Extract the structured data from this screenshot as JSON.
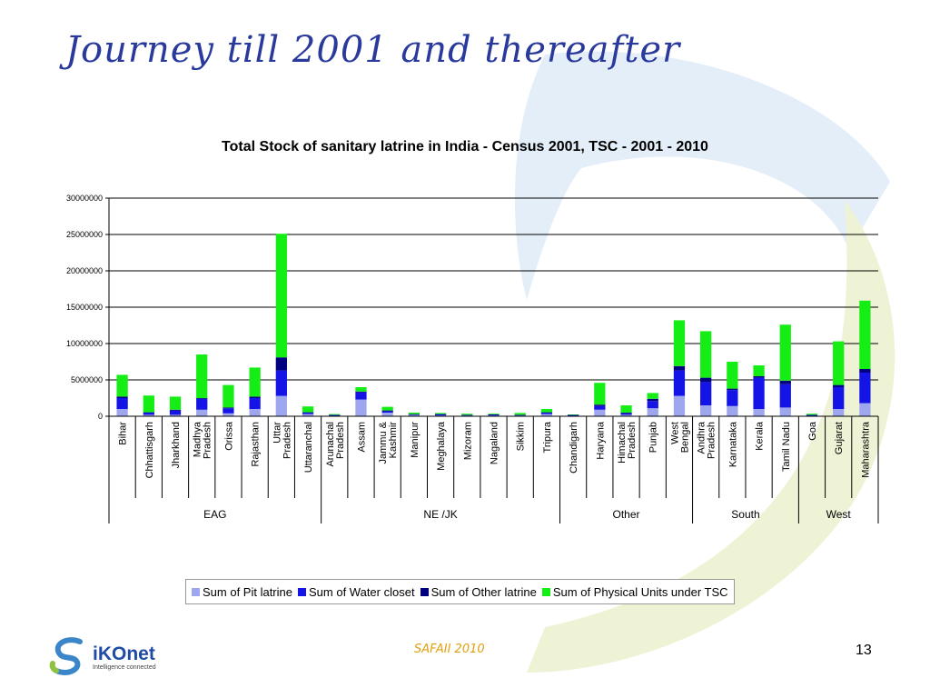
{
  "slide": {
    "title": "Journey till 2001 and thereafter",
    "footer_note": "SAFAII 2010",
    "slide_number": "13",
    "logo": {
      "brand": "iKOnet",
      "tagline": "Intelligence connected"
    }
  },
  "colors": {
    "pit": "#9ea6ee",
    "water": "#1414e6",
    "other": "#000080",
    "tsc": "#14ee14",
    "title": "#2a3a9c",
    "swoosh_blue": "#e3eef9",
    "swoosh_green": "#eef3d6"
  },
  "chart_data": {
    "type": "bar",
    "stacked": true,
    "title": "Total Stock of sanitary latrine in India - Census 2001, TSC - 2001 - 2010",
    "ylim": [
      0,
      30000000
    ],
    "yticks": [
      "0",
      "5000000",
      "10000000",
      "15000000",
      "20000000",
      "25000000",
      "30000000"
    ],
    "grid": true,
    "legend_position": "bottom",
    "categories": [
      "Bihar",
      "Chhattisgarh",
      "Jharkhand",
      "Madhya Pradesh",
      "Orissa",
      "Rajasthan",
      "Uttar Pradesh",
      "Uttaranchal",
      "Arunachal Pradesh",
      "Assam",
      "Jammu & Kashmir",
      "Manipur",
      "Meghalaya",
      "Mizoram",
      "Nagaland",
      "Sikkim",
      "Tripura",
      "Chandigarh",
      "Haryana",
      "Himachal Pradesh",
      "Punjab",
      "West Bengal",
      "Andhra Pradesh",
      "Karnataka",
      "Kerala",
      "Tamil Nadu",
      "Goa",
      "Gujarat",
      "Maharashtra"
    ],
    "category_lines": [
      [
        "Bihar"
      ],
      [
        "Chhattisgarh"
      ],
      [
        "Jharkhand"
      ],
      [
        "Madhya",
        "Pradesh"
      ],
      [
        "Orissa"
      ],
      [
        "Rajasthan"
      ],
      [
        "Uttar",
        "Pradesh"
      ],
      [
        "Uttaranchal"
      ],
      [
        "Arunachal",
        "Pradesh"
      ],
      [
        "Assam"
      ],
      [
        "Jammu &",
        "Kashmir"
      ],
      [
        "Manipur"
      ],
      [
        "Meghalaya"
      ],
      [
        "Mizoram"
      ],
      [
        "Nagaland"
      ],
      [
        "Sikkim"
      ],
      [
        "Tripura"
      ],
      [
        "Chandigarh"
      ],
      [
        "Haryana"
      ],
      [
        "Himachal",
        "Pradesh"
      ],
      [
        "Punjab"
      ],
      [
        "West",
        "Bengal"
      ],
      [
        "Andhra",
        "Pradesh"
      ],
      [
        "Karnataka"
      ],
      [
        "Kerala"
      ],
      [
        "Tamil Nadu"
      ],
      [
        "Goa"
      ],
      [
        "Gujarat"
      ],
      [
        "Maharashtra"
      ]
    ],
    "groups": [
      {
        "name": "EAG",
        "start": 0,
        "end": 7
      },
      {
        "name": "NE /JK",
        "start": 8,
        "end": 16
      },
      {
        "name": "Other",
        "start": 17,
        "end": 21
      },
      {
        "name": "South",
        "start": 22,
        "end": 25
      },
      {
        "name": "West",
        "start": 26,
        "end": 28
      }
    ],
    "series": [
      {
        "name": "Sum of Pit latrine",
        "color_key": "pit",
        "values": [
          1000000,
          200000,
          200000,
          900000,
          400000,
          1000000,
          2800000,
          300000,
          50000,
          2300000,
          500000,
          200000,
          100000,
          100000,
          100000,
          100000,
          300000,
          50000,
          900000,
          200000,
          1100000,
          2800000,
          1500000,
          1400000,
          1000000,
          1200000,
          50000,
          1000000,
          1800000
        ]
      },
      {
        "name": "Sum of Water closet",
        "color_key": "water",
        "values": [
          1500000,
          300000,
          600000,
          1500000,
          700000,
          1500000,
          3500000,
          200000,
          100000,
          1000000,
          200000,
          50000,
          150000,
          50000,
          100000,
          50000,
          200000,
          100000,
          500000,
          200000,
          1000000,
          3500000,
          3200000,
          2200000,
          4300000,
          3200000,
          100000,
          3000000,
          4200000
        ]
      },
      {
        "name": "Sum of Other latrine",
        "color_key": "other",
        "values": [
          200000,
          50000,
          100000,
          100000,
          100000,
          200000,
          1800000,
          50000,
          50000,
          100000,
          100000,
          50000,
          50000,
          50000,
          50000,
          50000,
          50000,
          50000,
          200000,
          100000,
          300000,
          600000,
          600000,
          200000,
          200000,
          500000,
          50000,
          300000,
          500000
        ]
      },
      {
        "name": "Sum of Physical Units under TSC",
        "color_key": "tsc",
        "values": [
          3000000,
          2300000,
          1800000,
          6000000,
          3100000,
          4000000,
          17000000,
          800000,
          100000,
          600000,
          500000,
          200000,
          150000,
          150000,
          100000,
          250000,
          450000,
          50000,
          3000000,
          1000000,
          800000,
          6300000,
          6400000,
          3700000,
          1500000,
          7700000,
          150000,
          6000000,
          9400000
        ]
      }
    ]
  }
}
